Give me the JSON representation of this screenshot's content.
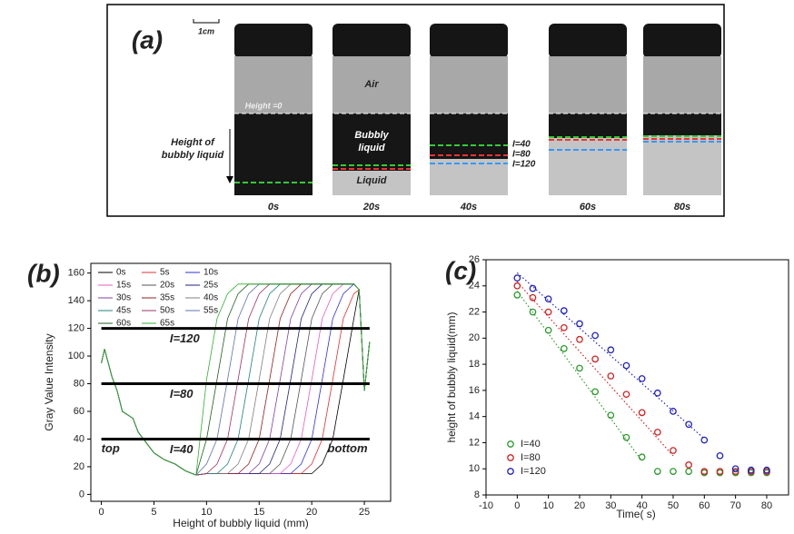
{
  "figure_a": {
    "label": "(a)",
    "scale_bar": "1cm",
    "height_zero": "Height =0",
    "air": "Air",
    "bubbly_liquid": [
      "Bubbly",
      "liquid"
    ],
    "liquid": "Liquid",
    "height_label": [
      "Height of",
      "bubbly liquid"
    ],
    "intensity_levels": [
      "I=40",
      "I=80",
      "I=120"
    ],
    "times": [
      "0s",
      "20s",
      "40s",
      "60s",
      "80s"
    ]
  },
  "chart_data": [
    {
      "type": "line",
      "panel_label": "(b)",
      "xlabel": "Height of bubbly liquid (mm)",
      "ylabel": "Gray Value Intensity",
      "xlim": [
        -1,
        27.5
      ],
      "xticks": [
        0,
        5,
        10,
        15,
        20,
        25
      ],
      "ylim": [
        -5,
        167
      ],
      "yticks": [
        0,
        20,
        40,
        60,
        80,
        100,
        120,
        140,
        160
      ],
      "hlines": [
        {
          "value": 120,
          "label": "I=120"
        },
        {
          "value": 80,
          "label": "I=80"
        },
        {
          "value": 40,
          "label": "I=40"
        }
      ],
      "notes": [
        "top",
        "bottom"
      ],
      "x": [
        0,
        0.3,
        1,
        1.5,
        2,
        3,
        3.5,
        4,
        5,
        6,
        7,
        8,
        9,
        10,
        11,
        12,
        13,
        14,
        15,
        16,
        17,
        18,
        19,
        20,
        21,
        22,
        23,
        24,
        24.5,
        25,
        25.5
      ],
      "series": [
        {
          "name": "0s",
          "color": "#000000",
          "values": [
            95,
            105,
            85,
            75,
            60,
            55,
            45,
            40,
            30,
            25,
            22,
            17,
            14,
            15,
            15,
            15,
            15,
            15,
            15,
            15,
            15,
            15,
            15,
            15,
            22,
            40,
            83,
            127,
            148,
            75,
            110
          ]
        },
        {
          "name": "5s",
          "color": "#e03030",
          "values": [
            95,
            105,
            85,
            75,
            60,
            55,
            45,
            40,
            30,
            25,
            22,
            17,
            14,
            15,
            15,
            15,
            15,
            15,
            15,
            15,
            15,
            15,
            15,
            22,
            40,
            83,
            127,
            145,
            148,
            75,
            110
          ]
        },
        {
          "name": "10s",
          "color": "#3030e0",
          "values": [
            95,
            105,
            85,
            75,
            60,
            55,
            45,
            40,
            30,
            25,
            22,
            17,
            14,
            15,
            15,
            15,
            15,
            15,
            15,
            15,
            15,
            15,
            22,
            40,
            83,
            127,
            145,
            152,
            148,
            75,
            110
          ]
        },
        {
          "name": "15s",
          "color": "#e060c0",
          "values": [
            95,
            105,
            85,
            75,
            60,
            55,
            45,
            40,
            30,
            25,
            22,
            17,
            14,
            15,
            15,
            15,
            15,
            15,
            15,
            15,
            15,
            22,
            40,
            83,
            127,
            145,
            152,
            152,
            148,
            75,
            110
          ]
        },
        {
          "name": "20s",
          "color": "#555555",
          "values": [
            95,
            105,
            85,
            75,
            60,
            55,
            45,
            40,
            30,
            25,
            22,
            17,
            14,
            15,
            15,
            15,
            15,
            15,
            15,
            15,
            22,
            40,
            83,
            127,
            145,
            152,
            152,
            152,
            148,
            75,
            110
          ]
        },
        {
          "name": "25s",
          "color": "#202080",
          "values": [
            95,
            105,
            85,
            75,
            60,
            55,
            45,
            40,
            30,
            25,
            22,
            17,
            14,
            15,
            15,
            15,
            15,
            15,
            15,
            22,
            40,
            83,
            127,
            145,
            152,
            152,
            152,
            152,
            148,
            75,
            110
          ]
        },
        {
          "name": "30s",
          "color": "#8040a0",
          "values": [
            95,
            105,
            85,
            75,
            60,
            55,
            45,
            40,
            30,
            25,
            22,
            17,
            14,
            15,
            15,
            15,
            15,
            15,
            22,
            40,
            83,
            127,
            145,
            152,
            152,
            152,
            152,
            152,
            148,
            75,
            110
          ]
        },
        {
          "name": "35s",
          "color": "#902020",
          "values": [
            95,
            105,
            85,
            75,
            60,
            55,
            45,
            40,
            30,
            25,
            22,
            17,
            14,
            15,
            15,
            15,
            15,
            22,
            40,
            83,
            127,
            145,
            152,
            152,
            152,
            152,
            152,
            152,
            148,
            75,
            110
          ]
        },
        {
          "name": "40s",
          "color": "#808080",
          "values": [
            95,
            105,
            85,
            75,
            60,
            55,
            45,
            40,
            30,
            25,
            22,
            17,
            14,
            15,
            15,
            15,
            22,
            40,
            83,
            127,
            145,
            152,
            152,
            152,
            152,
            152,
            152,
            152,
            148,
            75,
            110
          ]
        },
        {
          "name": "45s",
          "color": "#208080",
          "values": [
            95,
            105,
            85,
            75,
            60,
            55,
            45,
            40,
            30,
            25,
            22,
            17,
            14,
            15,
            15,
            22,
            40,
            83,
            127,
            145,
            152,
            152,
            152,
            152,
            152,
            152,
            152,
            152,
            148,
            75,
            110
          ]
        },
        {
          "name": "50s",
          "color": "#a03060",
          "values": [
            95,
            105,
            85,
            75,
            60,
            55,
            45,
            40,
            30,
            25,
            22,
            17,
            14,
            15,
            22,
            40,
            83,
            127,
            145,
            152,
            152,
            152,
            152,
            152,
            152,
            152,
            152,
            152,
            148,
            75,
            110
          ]
        },
        {
          "name": "55s",
          "color": "#6070b0",
          "values": [
            95,
            105,
            85,
            75,
            60,
            55,
            45,
            40,
            30,
            25,
            22,
            17,
            14,
            22,
            40,
            83,
            127,
            145,
            152,
            152,
            152,
            152,
            152,
            152,
            152,
            152,
            152,
            152,
            148,
            75,
            110
          ]
        },
        {
          "name": "60s",
          "color": "#206020",
          "values": [
            95,
            105,
            85,
            75,
            60,
            55,
            45,
            40,
            30,
            25,
            22,
            17,
            14,
            40,
            83,
            127,
            145,
            152,
            152,
            152,
            152,
            152,
            152,
            152,
            152,
            152,
            152,
            152,
            148,
            75,
            110
          ]
        },
        {
          "name": "65s",
          "color": "#30b030",
          "values": [
            95,
            105,
            85,
            75,
            60,
            55,
            45,
            40,
            30,
            25,
            22,
            17,
            14,
            83,
            127,
            145,
            152,
            152,
            152,
            152,
            152,
            152,
            152,
            152,
            152,
            152,
            152,
            152,
            148,
            75,
            110
          ]
        }
      ]
    },
    {
      "type": "scatter",
      "panel_label": "(c)",
      "xlabel": "Time( s)",
      "ylabel": "height of bubbly liquid(mm)",
      "xlim": [
        -10,
        87
      ],
      "xticks": [
        -10,
        0,
        10,
        20,
        30,
        40,
        50,
        60,
        70,
        80
      ],
      "ylim": [
        8,
        26
      ],
      "yticks": [
        8,
        10,
        12,
        14,
        16,
        18,
        20,
        22,
        24,
        26
      ],
      "x": [
        0,
        5,
        10,
        15,
        20,
        25,
        30,
        35,
        40,
        45,
        50,
        55,
        60,
        65,
        70,
        75,
        80
      ],
      "series": [
        {
          "name": "I=40",
          "color": "#2a9a2a",
          "values": [
            23.3,
            22,
            20.6,
            19.2,
            17.7,
            15.9,
            14.1,
            12.4,
            10.9,
            9.8,
            9.8,
            9.8,
            9.7,
            9.7,
            9.7,
            9.7,
            9.7
          ],
          "fit_x": [
            0,
            40
          ],
          "fit_y": [
            23.6,
            10.6
          ]
        },
        {
          "name": "I=80",
          "color": "#d02020",
          "values": [
            24,
            23.1,
            22,
            20.8,
            19.9,
            18.4,
            17.1,
            15.7,
            14.3,
            12.8,
            11.4,
            10.3,
            9.8,
            9.8,
            9.8,
            9.8,
            9.8
          ],
          "fit_x": [
            0,
            50
          ],
          "fit_y": [
            24.3,
            11
          ]
        },
        {
          "name": "I=120",
          "color": "#2020c0",
          "values": [
            24.6,
            23.8,
            23,
            22.1,
            21.1,
            20.2,
            19.1,
            17.9,
            16.9,
            15.8,
            14.4,
            13.4,
            12.2,
            11,
            10,
            9.9,
            9.9
          ],
          "fit_x": [
            0,
            60
          ],
          "fit_y": [
            25,
            12.3
          ]
        }
      ]
    }
  ]
}
